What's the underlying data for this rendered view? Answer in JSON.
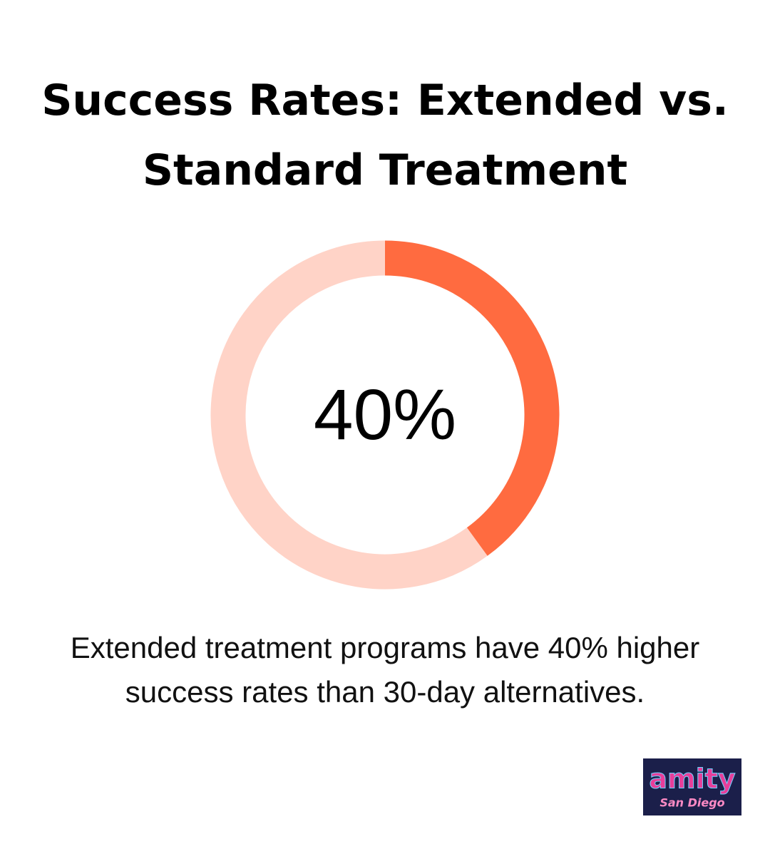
{
  "chart_data": {
    "type": "donut",
    "title": "Success Rates: Extended vs. Standard Treatment",
    "values": [
      40,
      60
    ],
    "value_labels": [
      "40%",
      null
    ],
    "colors": [
      "#ff6b40",
      "#ffd3c7"
    ],
    "caption": "Extended treatment programs have 40% higher success rates than 30-day alternatives."
  },
  "logo": {
    "title": "amity",
    "subtitle": "San Diego"
  }
}
